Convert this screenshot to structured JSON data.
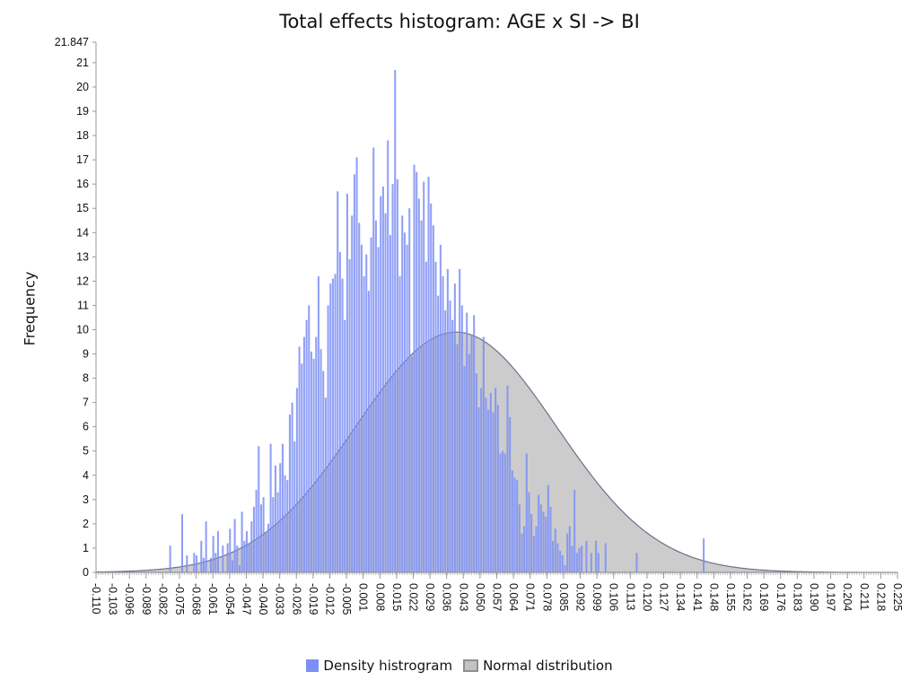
{
  "chart_data": {
    "type": "bar",
    "title": "Total effects histogram: AGE x SI -> BI",
    "xlabel": "",
    "ylabel": "Frequency",
    "ylim": [
      0,
      21.847
    ],
    "ytick_labels": [
      "0",
      "1",
      "2",
      "3",
      "4",
      "5",
      "6",
      "7",
      "8",
      "9",
      "10",
      "11",
      "12",
      "13",
      "14",
      "15",
      "16",
      "17",
      "18",
      "19",
      "20",
      "21",
      "21.847"
    ],
    "xlim": [
      -0.11,
      0.225
    ],
    "xtick_labels": [
      "-0.110",
      "-0.103",
      "-0.096",
      "-0.089",
      "-0.082",
      "-0.075",
      "-0.068",
      "-0.061",
      "-0.054",
      "-0.047",
      "-0.040",
      "-0.033",
      "-0.026",
      "-0.019",
      "-0.012",
      "-0.005",
      "0.001",
      "0.008",
      "0.015",
      "0.022",
      "0.029",
      "0.036",
      "0.043",
      "0.050",
      "0.057",
      "0.064",
      "0.071",
      "0.078",
      "0.085",
      "0.092",
      "0.099",
      "0.106",
      "0.113",
      "0.120",
      "0.127",
      "0.134",
      "0.141",
      "0.148",
      "0.155",
      "0.162",
      "0.169",
      "0.176",
      "0.183",
      "0.190",
      "0.197",
      "0.204",
      "0.211",
      "0.218",
      "0.225"
    ],
    "legend_placement": "bottom",
    "series": [
      {
        "name": "Density histrogram",
        "type": "bar",
        "bin_width": 0.001,
        "bins_start": -0.079,
        "values": [
          1.1,
          0,
          0,
          0,
          0,
          2.4,
          0,
          0.7,
          0,
          0,
          0.8,
          0.7,
          0,
          1.3,
          0.6,
          2.1,
          0,
          0.6,
          1.5,
          0.8,
          1.7,
          0,
          1.1,
          0,
          1.2,
          1.8,
          0.5,
          2.2,
          1.1,
          0.3,
          2.5,
          1.3,
          1.7,
          1.2,
          2.1,
          2.7,
          3.4,
          5.2,
          2.8,
          3.1,
          1.6,
          2.0,
          5.3,
          3.1,
          4.4,
          3.3,
          4.5,
          5.3,
          4.0,
          3.8,
          6.5,
          7.0,
          5.4,
          7.6,
          9.3,
          8.6,
          9.7,
          10.4,
          11.0,
          9.1,
          8.8,
          9.7,
          12.2,
          9.2,
          8.3,
          7.2,
          11.0,
          11.9,
          12.1,
          12.3,
          15.7,
          13.2,
          12.1,
          10.4,
          15.6,
          12.9,
          14.7,
          16.4,
          17.1,
          14.4,
          13.5,
          12.2,
          13.1,
          11.6,
          13.8,
          17.5,
          14.5,
          13.4,
          15.5,
          15.9,
          14.8,
          17.8,
          13.9,
          16.0,
          20.7,
          16.2,
          12.2,
          14.7,
          14.0,
          13.5,
          15.0,
          8.9,
          16.8,
          16.5,
          15.4,
          14.5,
          16.1,
          12.8,
          16.3,
          15.2,
          14.3,
          12.8,
          11.4,
          13.5,
          12.2,
          10.8,
          12.5,
          11.2,
          10.4,
          11.9,
          9.4,
          12.5,
          11.0,
          8.5,
          10.7,
          9.0,
          9.8,
          10.6,
          8.2,
          6.8,
          7.6,
          9.7,
          7.2,
          6.7,
          7.4,
          6.6,
          7.6,
          6.9,
          4.9,
          5.0,
          4.9,
          7.7,
          6.4,
          4.2,
          3.9,
          3.8,
          2.8,
          1.6,
          1.9,
          4.9,
          3.3,
          2.4,
          1.5,
          1.9,
          3.2,
          2.8,
          2.5,
          2.3,
          3.6,
          2.7,
          1.3,
          1.8,
          1.2,
          0.9,
          0.7,
          0.3,
          1.6,
          1.9,
          1.1,
          3.4,
          0.8,
          1.0,
          1.1,
          0,
          1.3,
          0,
          0.8,
          0,
          1.3,
          0.8,
          0,
          0,
          1.2,
          0,
          0,
          0,
          0,
          0,
          0,
          0,
          0,
          0,
          0,
          0,
          0,
          0.8,
          0,
          0,
          0,
          0,
          0,
          0,
          0,
          0,
          0,
          0,
          0,
          0,
          0,
          0,
          0,
          0,
          0,
          0,
          0,
          0,
          0,
          0,
          0,
          0,
          0,
          0,
          0,
          1.4
        ]
      },
      {
        "name": "Normal distribution",
        "type": "area",
        "mean": 0.0405,
        "std": 0.042,
        "peak": 9.9
      }
    ]
  },
  "legend": {
    "density_label": "Density histrogram",
    "normal_label": "Normal distribution"
  },
  "colors": {
    "bar": "#7d8ff5",
    "normal_fill": "#8d8d8d",
    "normal_stroke": "#6f6f8a",
    "axis": "#9a9a9a"
  }
}
